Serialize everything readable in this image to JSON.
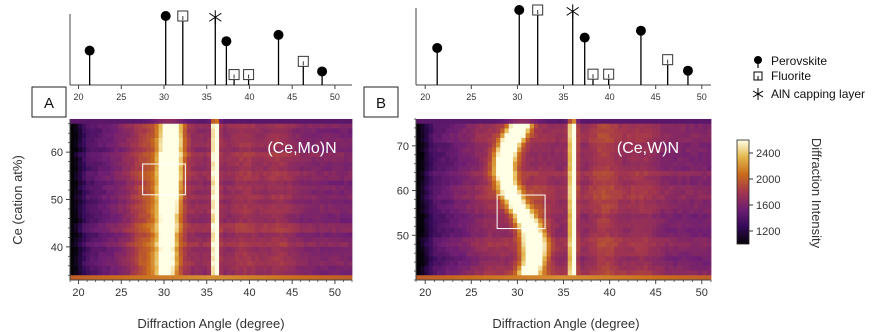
{
  "chart_data": [
    {
      "type": "heatmap",
      "panel_label": "A",
      "title": "(Ce,Mo)N",
      "xlabel": "Diffraction Angle (degree)",
      "ylabel": "Ce  (cation at%)",
      "xlim": [
        19,
        52
      ],
      "ylim": [
        33,
        67
      ],
      "xticks": [
        20,
        25,
        30,
        35,
        40,
        45,
        50
      ],
      "yticks": [
        40,
        50,
        60
      ],
      "highlight_box": {
        "x": [
          27.5,
          32.5
        ],
        "y": [
          51,
          57.5
        ]
      },
      "reference_peaks": [
        {
          "phase": "Perovskite",
          "angle": 21.3,
          "intensity": 0.45
        },
        {
          "phase": "Perovskite",
          "angle": 30.2,
          "intensity": 1.0
        },
        {
          "phase": "Fluorite",
          "angle": 32.2,
          "intensity": 1.0
        },
        {
          "phase": "AlN capping layer",
          "angle": 36.0,
          "intensity": 0.98
        },
        {
          "phase": "Perovskite",
          "angle": 37.3,
          "intensity": 0.6
        },
        {
          "phase": "Fluorite",
          "angle": 38.2,
          "intensity": 0.07
        },
        {
          "phase": "Fluorite",
          "angle": 39.9,
          "intensity": 0.07
        },
        {
          "phase": "Perovskite",
          "angle": 43.4,
          "intensity": 0.7
        },
        {
          "phase": "Fluorite",
          "angle": 46.3,
          "intensity": 0.28
        },
        {
          "phase": "Perovskite",
          "angle": 48.5,
          "intensity": 0.12
        }
      ]
    },
    {
      "type": "heatmap",
      "panel_label": "B",
      "title": "(Ce,W)N",
      "xlabel": "Diffraction Angle (degree)",
      "ylabel": "",
      "xlim": [
        19,
        51
      ],
      "ylim": [
        40,
        76
      ],
      "xticks": [
        20,
        25,
        30,
        35,
        40,
        45,
        50
      ],
      "yticks": [
        50,
        60,
        70
      ],
      "highlight_box": {
        "x": [
          27.8,
          33.0
        ],
        "y": [
          51.5,
          59
        ]
      },
      "reference_peaks": [
        {
          "phase": "Perovskite",
          "angle": 21.3,
          "intensity": 0.45
        },
        {
          "phase": "Perovskite",
          "angle": 30.2,
          "intensity": 1.0
        },
        {
          "phase": "Fluorite",
          "angle": 32.2,
          "intensity": 1.0
        },
        {
          "phase": "AlN capping layer",
          "angle": 36.0,
          "intensity": 0.98
        },
        {
          "phase": "Perovskite",
          "angle": 37.3,
          "intensity": 0.6
        },
        {
          "phase": "Fluorite",
          "angle": 38.2,
          "intensity": 0.07
        },
        {
          "phase": "Fluorite",
          "angle": 39.9,
          "intensity": 0.07
        },
        {
          "phase": "Perovskite",
          "angle": 43.4,
          "intensity": 0.7
        },
        {
          "phase": "Fluorite",
          "angle": 46.3,
          "intensity": 0.28
        },
        {
          "phase": "Perovskite",
          "angle": 48.5,
          "intensity": 0.12
        }
      ]
    }
  ],
  "legend": {
    "placement": "right",
    "items": [
      {
        "label": "Perovskite",
        "marker": "filled-circle"
      },
      {
        "label": "Fluorite",
        "marker": "open-square"
      },
      {
        "label": "AlN capping layer",
        "marker": "asterisk"
      }
    ]
  },
  "colorbar": {
    "label": "Diffraction Intensity",
    "range": [
      1000,
      2600
    ],
    "ticks": [
      1200,
      1600,
      2000,
      2400
    ],
    "colormap": "inferno-like",
    "stops": [
      "#050307",
      "#330a58",
      "#6e1e73",
      "#a3364e",
      "#c96a1c",
      "#e3b54a",
      "#ffffe6"
    ]
  }
}
